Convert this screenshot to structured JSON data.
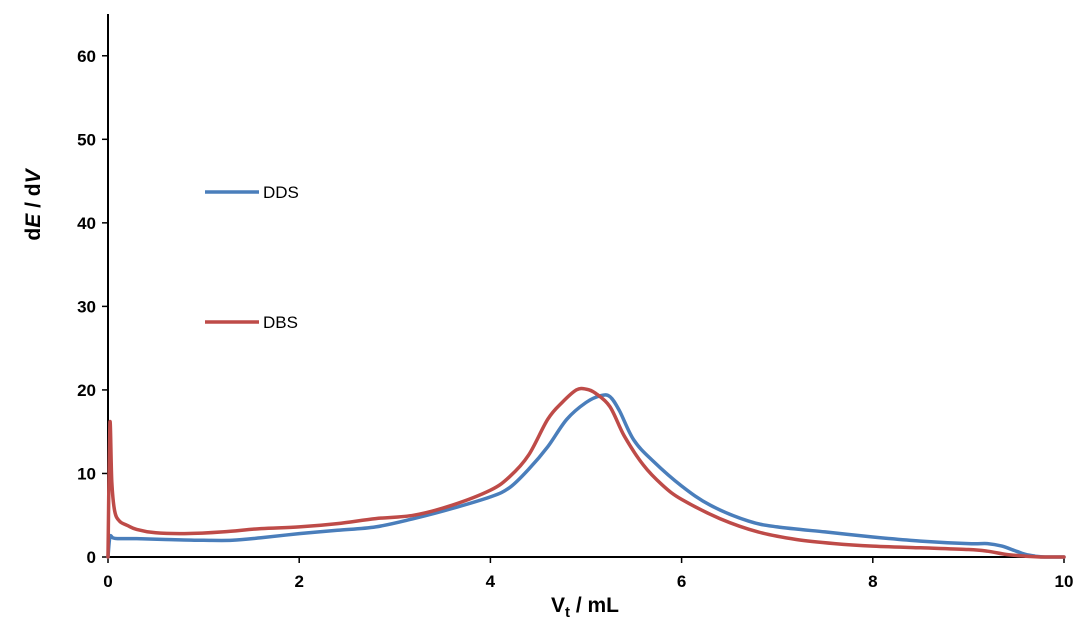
{
  "chart_data": {
    "type": "line",
    "xlabel": {
      "base": "V",
      "sub": "t",
      "rest": " / mL"
    },
    "ylabel": {
      "d1": "d",
      "E": "E",
      "mid": " / d",
      "V": "V"
    },
    "xlim": [
      0,
      10
    ],
    "ylim": [
      0,
      65
    ],
    "xticks": [
      0,
      2,
      4,
      6,
      8,
      10
    ],
    "yticks": [
      0,
      10,
      20,
      30,
      40,
      50,
      60
    ],
    "grid": false,
    "legend_position": "left-middle",
    "series": [
      {
        "name": "DDS",
        "color": "#4a7ebb",
        "x": [
          0,
          0.02,
          0.05,
          0.1,
          0.3,
          0.6,
          1.0,
          1.3,
          1.6,
          2.0,
          2.4,
          2.8,
          3.2,
          3.6,
          4.0,
          4.2,
          4.4,
          4.6,
          4.8,
          5.0,
          5.15,
          5.25,
          5.35,
          5.5,
          5.7,
          6.0,
          6.3,
          6.7,
          7.0,
          7.5,
          8.0,
          8.5,
          9.0,
          9.2,
          9.35,
          9.5,
          9.6,
          9.7,
          9.8,
          10.0
        ],
        "y": [
          0,
          2.4,
          2.3,
          2.2,
          2.2,
          2.1,
          2.0,
          2.0,
          2.3,
          2.8,
          3.2,
          3.6,
          4.6,
          5.8,
          7.2,
          8.3,
          10.5,
          13.2,
          16.5,
          18.5,
          19.3,
          19.2,
          17.5,
          14.0,
          11.5,
          8.5,
          6.2,
          4.3,
          3.6,
          3.0,
          2.4,
          1.9,
          1.6,
          1.6,
          1.3,
          0.7,
          0.3,
          0.1,
          0.0,
          0.0
        ]
      },
      {
        "name": "DBS",
        "color": "#be4b48",
        "x": [
          0,
          0.02,
          0.04,
          0.07,
          0.12,
          0.2,
          0.3,
          0.5,
          0.8,
          1.2,
          1.6,
          2.0,
          2.4,
          2.8,
          3.2,
          3.6,
          4.0,
          4.2,
          4.4,
          4.6,
          4.75,
          4.9,
          5.0,
          5.1,
          5.25,
          5.4,
          5.6,
          5.8,
          6.0,
          6.4,
          6.8,
          7.2,
          7.6,
          8.0,
          8.5,
          9.0,
          9.2,
          9.4,
          9.6,
          9.8,
          10.0
        ],
        "y": [
          0,
          16.0,
          9.0,
          5.5,
          4.3,
          3.8,
          3.3,
          2.9,
          2.8,
          3.0,
          3.4,
          3.6,
          4.0,
          4.6,
          5.0,
          6.2,
          8.0,
          9.6,
          12.2,
          16.5,
          18.5,
          20.0,
          20.1,
          19.6,
          18.0,
          14.5,
          11.0,
          8.6,
          6.9,
          4.6,
          3.0,
          2.1,
          1.6,
          1.3,
          1.1,
          0.9,
          0.7,
          0.3,
          0.1,
          0.0,
          0.0
        ]
      }
    ]
  }
}
